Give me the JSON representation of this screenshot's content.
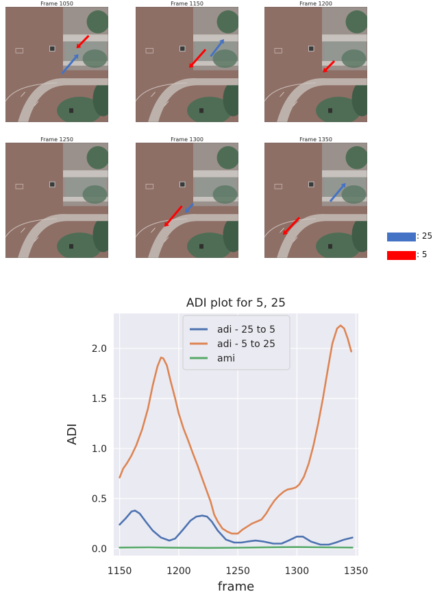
{
  "frames": [
    {
      "title": "Frame 1050"
    },
    {
      "title": "Frame 1150"
    },
    {
      "title": "Frame 1200"
    },
    {
      "title": "Frame 1250"
    },
    {
      "title": "Frame 1300"
    },
    {
      "title": "Frame 1350"
    }
  ],
  "frame_legend": [
    {
      "label": ": 25",
      "color": "#4472c4"
    },
    {
      "label": ":  5",
      "color": "#ff0000"
    }
  ],
  "colors": {
    "ground": "#8e6f66",
    "concrete": "#a9a19c",
    "trees": "#4f6d55",
    "plot_bg": "#eaeaf2",
    "grid": "#ffffff"
  },
  "chart_data": {
    "type": "line",
    "title": "ADI plot for 5, 25",
    "xlabel": "frame",
    "ylabel": "ADI",
    "xlim": [
      1145,
      1352
    ],
    "ylim": [
      -0.07,
      2.35
    ],
    "xticks": [
      1150,
      1200,
      1250,
      1300,
      1350
    ],
    "yticks": [
      0.0,
      0.5,
      1.0,
      1.5,
      2.0
    ],
    "grid": true,
    "legend_position": "top-center",
    "series": [
      {
        "name": "adi - 25 to 5",
        "color": "#4c72b0",
        "x": [
          1150,
          1155,
          1160,
          1163,
          1167,
          1172,
          1178,
          1185,
          1192,
          1197,
          1203,
          1210,
          1215,
          1220,
          1224,
          1228,
          1233,
          1240,
          1247,
          1253,
          1258,
          1265,
          1272,
          1280,
          1287,
          1293,
          1300,
          1305,
          1312,
          1320,
          1327,
          1333,
          1340,
          1347
        ],
        "y": [
          0.24,
          0.3,
          0.37,
          0.38,
          0.35,
          0.27,
          0.18,
          0.11,
          0.08,
          0.1,
          0.18,
          0.28,
          0.32,
          0.33,
          0.32,
          0.27,
          0.18,
          0.09,
          0.06,
          0.06,
          0.07,
          0.08,
          0.07,
          0.05,
          0.05,
          0.08,
          0.12,
          0.12,
          0.07,
          0.04,
          0.04,
          0.06,
          0.09,
          0.11
        ]
      },
      {
        "name": "adi - 5 to 25",
        "color": "#dd8452",
        "x": [
          1150,
          1153,
          1156,
          1160,
          1164,
          1169,
          1174,
          1178,
          1182,
          1185,
          1187,
          1190,
          1193,
          1197,
          1200,
          1204,
          1208,
          1212,
          1216,
          1219,
          1223,
          1227,
          1230,
          1233,
          1237,
          1241,
          1245,
          1250,
          1254,
          1258,
          1262,
          1266,
          1270,
          1274,
          1277,
          1281,
          1285,
          1289,
          1292,
          1296,
          1299,
          1302,
          1306,
          1310,
          1314,
          1318,
          1322,
          1326,
          1330,
          1334,
          1337,
          1340,
          1343,
          1346
        ],
        "y": [
          0.71,
          0.8,
          0.85,
          0.93,
          1.03,
          1.19,
          1.4,
          1.63,
          1.82,
          1.91,
          1.9,
          1.83,
          1.68,
          1.5,
          1.35,
          1.2,
          1.08,
          0.95,
          0.83,
          0.73,
          0.6,
          0.47,
          0.34,
          0.27,
          0.2,
          0.17,
          0.15,
          0.15,
          0.19,
          0.22,
          0.25,
          0.27,
          0.29,
          0.35,
          0.41,
          0.48,
          0.53,
          0.57,
          0.59,
          0.6,
          0.61,
          0.64,
          0.72,
          0.85,
          1.03,
          1.25,
          1.5,
          1.78,
          2.05,
          2.2,
          2.23,
          2.2,
          2.1,
          1.97
        ]
      },
      {
        "name": "ami",
        "color": "#55a868",
        "x": [
          1150,
          1175,
          1200,
          1225,
          1250,
          1275,
          1300,
          1325,
          1347
        ],
        "y": [
          0.01,
          0.012,
          0.008,
          0.007,
          0.009,
          0.013,
          0.015,
          0.012,
          0.01
        ]
      }
    ]
  }
}
